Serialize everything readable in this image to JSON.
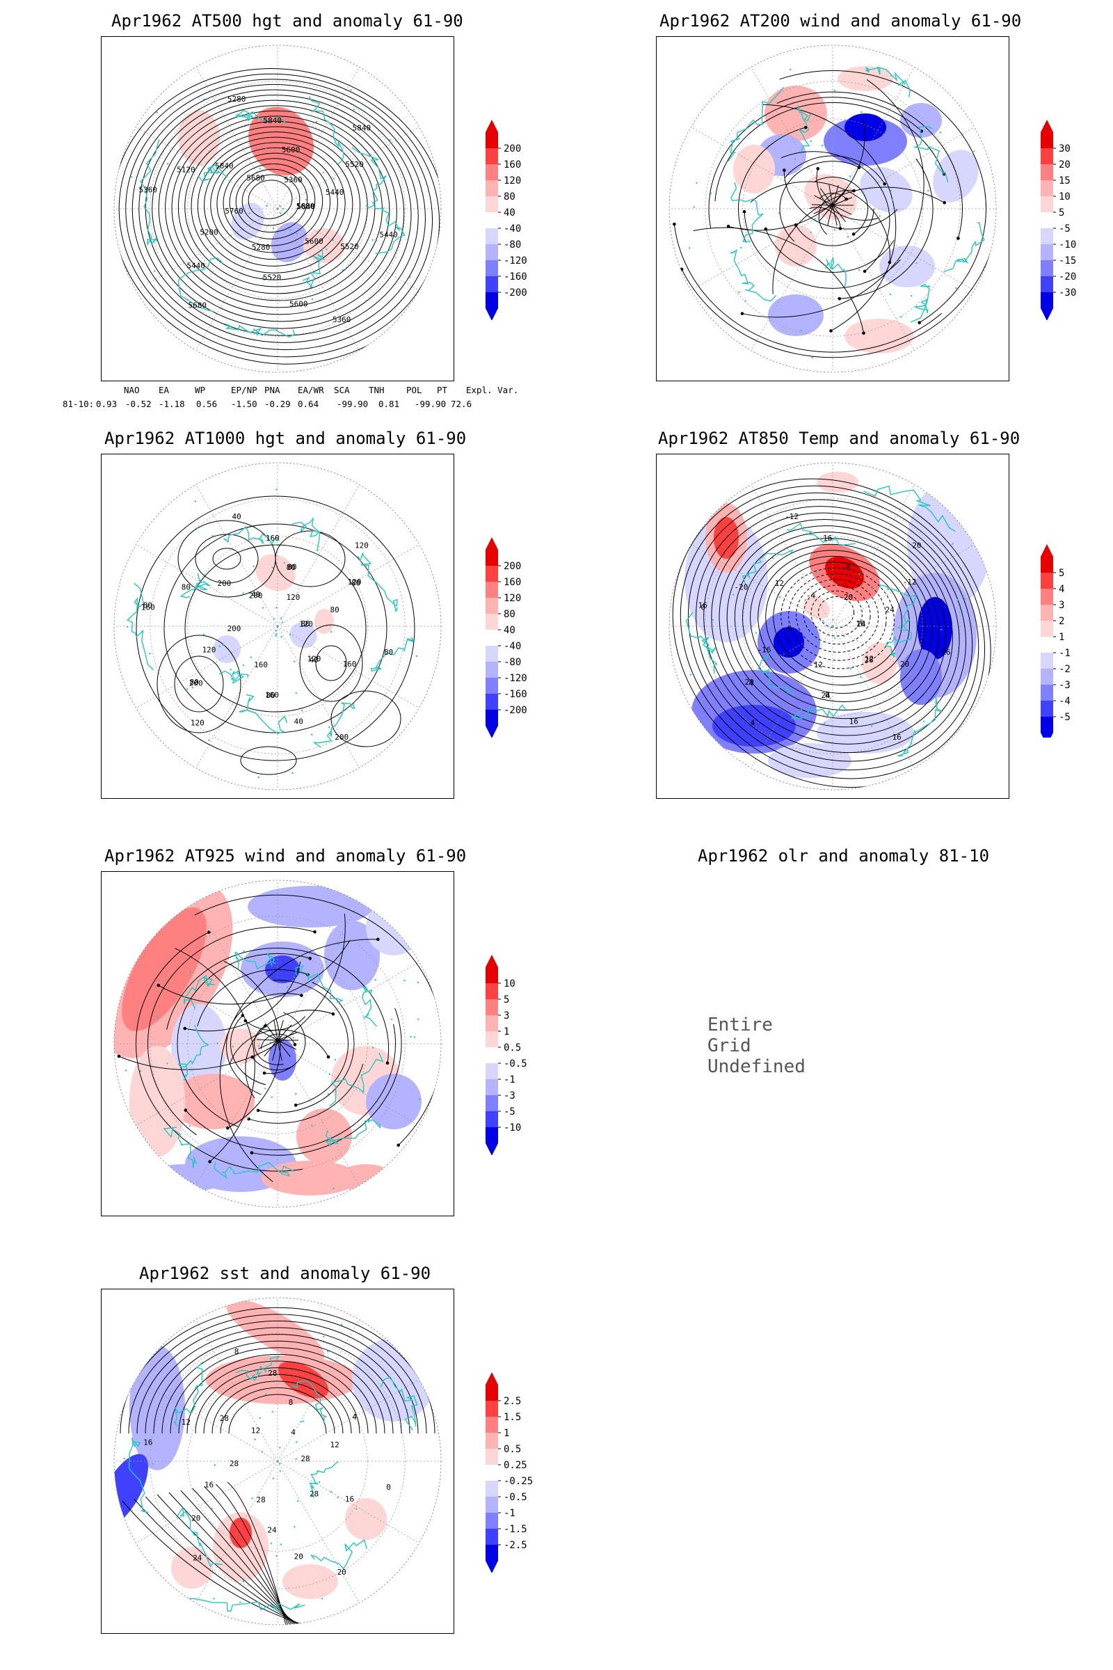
{
  "panels": [
    {
      "id": "p1",
      "title": "Apr1962 AT500 hgt and anomaly 61-90",
      "field": "hgt500",
      "colorbar": [
        "200",
        "160",
        "120",
        "80",
        "40",
        "-40",
        "-80",
        "-120",
        "-160",
        "-200"
      ],
      "contour_labels": [
        "5680",
        "5600",
        "5520",
        "5440",
        "5360",
        "5680",
        "5600",
        "5520",
        "5440",
        "5360",
        "5280",
        "5200",
        "5120",
        "5280",
        "5360",
        "5440",
        "5520",
        "5600",
        "5680",
        "5760",
        "5840",
        "5840",
        "5840",
        "5840"
      ]
    },
    {
      "id": "p2",
      "title": "Apr1962 AT200 wind and anomaly 61-90",
      "field": "wind200",
      "colorbar": [
        "30",
        "20",
        "15",
        "10",
        "5",
        "-5",
        "-10",
        "-15",
        "-20",
        "-30"
      ],
      "contour_labels": []
    },
    {
      "id": "p3",
      "title": "Apr1962 AT1000 hgt and anomaly 61-90",
      "field": "hgt1000",
      "colorbar": [
        "200",
        "160",
        "120",
        "80",
        "40",
        "-40",
        "-80",
        "-120",
        "-160",
        "-200"
      ],
      "contour_labels": [
        "80",
        "120",
        "160",
        "200",
        "160",
        "200",
        "80",
        "120",
        "80",
        "200",
        "160",
        "120",
        "80",
        "40",
        "120",
        "80",
        "160",
        "40",
        "120",
        "200",
        "200",
        "160",
        "120",
        "120",
        "40",
        "80",
        "80",
        "80",
        "40",
        "80",
        "80"
      ]
    },
    {
      "id": "p4",
      "title": "Apr1962 AT850 Temp and anomaly 61-90",
      "field": "temp850",
      "colorbar": [
        "5",
        "4",
        "3",
        "2",
        "1",
        "-1",
        "-2",
        "-3",
        "-4",
        "-5"
      ],
      "contour_labels": [
        "16",
        "12",
        "8",
        "4",
        "0",
        "-4",
        "-8",
        "-12",
        "-16",
        "16",
        "-12",
        "-16",
        "-20",
        "-12",
        "20",
        "24",
        "20",
        "16",
        "4",
        "0",
        "12",
        "16",
        "20",
        "24",
        "28",
        "24",
        "20",
        "16"
      ]
    },
    {
      "id": "p5",
      "title": "Apr1962 AT925 wind and anomaly 61-90",
      "field": "wind925",
      "colorbar": [
        "10",
        "5",
        "3",
        "1",
        "0.5",
        "-0.5",
        "-1",
        "-3",
        "-5",
        "-10"
      ],
      "contour_labels": []
    },
    {
      "id": "p6",
      "title": "Apr1962 olr and anomaly 81-10",
      "field": "olr",
      "undefined_text": "Entire Grid Undefined",
      "colorbar": [],
      "contour_labels": []
    },
    {
      "id": "p7",
      "title": "Apr1962 sst and anomaly 61-90",
      "field": "sst",
      "colorbar": [
        "2.5",
        "1.5",
        "1",
        "0.5",
        "0.25",
        "-0.25",
        "-0.5",
        "-1",
        "-1.5",
        "-2.5"
      ],
      "contour_labels": [
        "28",
        "28",
        "24",
        "20",
        "16",
        "12",
        "8",
        "4",
        "0",
        "20",
        "28",
        "16",
        "12",
        "8",
        "4",
        "12",
        "16",
        "20",
        "24",
        "28",
        "28",
        "28"
      ]
    }
  ],
  "teleconnection": {
    "headers": [
      "NAO",
      "EA",
      "WP",
      "EP/NP",
      "PNA",
      "EA/WR",
      "SCA",
      "TNH",
      "POL",
      "PT",
      "Expl. Var."
    ],
    "row_label": "81-10:",
    "values": [
      "0.93",
      "-0.52",
      "-1.18",
      "0.56",
      "-1.50",
      "-0.29",
      "0.64",
      "-99.90",
      "0.81",
      "-99.90",
      "72.6"
    ]
  },
  "colors": {
    "coast": "#22c7c0",
    "red_scale": [
      "#ffd6d6",
      "#ffb3b3",
      "#ff8080",
      "#ff4040",
      "#e60000"
    ],
    "blue_scale": [
      "#d6d6ff",
      "#b3b3ff",
      "#8080ff",
      "#4040ff",
      "#0000e6"
    ]
  }
}
